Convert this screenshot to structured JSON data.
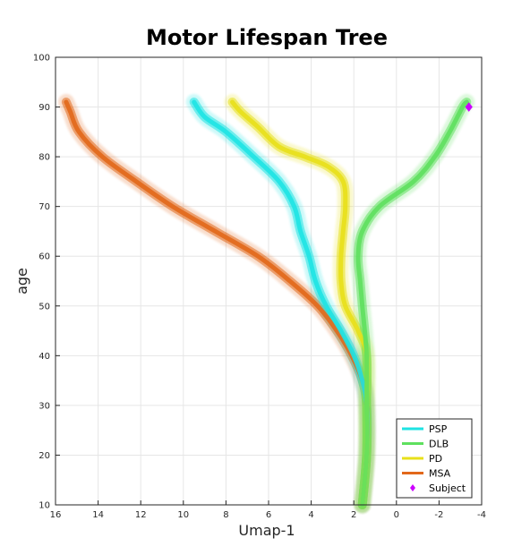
{
  "chart_data": {
    "type": "line",
    "title": "Motor Lifespan Tree",
    "xlabel": "Umap-1",
    "ylabel": "age",
    "xlim": [
      16,
      -4
    ],
    "ylim": [
      10,
      100
    ],
    "x_reversed": true,
    "xticks": [
      16,
      14,
      12,
      10,
      8,
      6,
      4,
      2,
      0,
      -2,
      -4
    ],
    "xtick_labels": [
      "16",
      "14",
      "12",
      "10",
      "8",
      "6",
      "4",
      "2",
      "0",
      "-2",
      "-4"
    ],
    "yticks": [
      10,
      20,
      30,
      40,
      50,
      60,
      70,
      80,
      90,
      100
    ],
    "ytick_labels": [
      "10",
      "20",
      "30",
      "40",
      "50",
      "60",
      "70",
      "80",
      "90",
      "100"
    ],
    "grid": true,
    "legend_position": "bottom-right",
    "series": [
      {
        "name": "PSP",
        "color": "#1ee3e3",
        "points": [
          [
            1.6,
            10
          ],
          [
            1.4,
            20
          ],
          [
            1.4,
            30
          ],
          [
            1.6,
            35
          ],
          [
            2.0,
            40
          ],
          [
            2.6,
            45
          ],
          [
            3.3,
            50
          ],
          [
            3.8,
            55
          ],
          [
            4.1,
            60
          ],
          [
            4.5,
            65
          ],
          [
            4.8,
            70
          ],
          [
            5.5,
            75
          ],
          [
            6.7,
            80
          ],
          [
            8.0,
            85
          ],
          [
            9.0,
            88
          ],
          [
            9.5,
            91
          ]
        ]
      },
      {
        "name": "DLB",
        "color": "#5ee05e",
        "points": [
          [
            1.6,
            10
          ],
          [
            1.4,
            20
          ],
          [
            1.4,
            30
          ],
          [
            1.4,
            40
          ],
          [
            1.6,
            50
          ],
          [
            1.7,
            55
          ],
          [
            1.8,
            60
          ],
          [
            1.6,
            65
          ],
          [
            0.8,
            70
          ],
          [
            -0.8,
            75
          ],
          [
            -1.8,
            80
          ],
          [
            -2.5,
            85
          ],
          [
            -3.1,
            90
          ],
          [
            -3.3,
            91
          ]
        ]
      },
      {
        "name": "PD",
        "color": "#e8e01a",
        "points": [
          [
            1.6,
            10
          ],
          [
            1.4,
            20
          ],
          [
            1.4,
            30
          ],
          [
            1.4,
            40
          ],
          [
            1.8,
            45
          ],
          [
            2.4,
            50
          ],
          [
            2.6,
            55
          ],
          [
            2.6,
            60
          ],
          [
            2.5,
            65
          ],
          [
            2.4,
            70
          ],
          [
            2.5,
            75
          ],
          [
            3.2,
            78
          ],
          [
            4.3,
            80
          ],
          [
            5.5,
            82
          ],
          [
            6.5,
            86
          ],
          [
            7.3,
            89
          ],
          [
            7.7,
            91
          ]
        ]
      },
      {
        "name": "MSA",
        "color": "#e2681a",
        "points": [
          [
            1.6,
            10
          ],
          [
            1.4,
            20
          ],
          [
            1.4,
            30
          ],
          [
            1.6,
            35
          ],
          [
            2.1,
            40
          ],
          [
            2.8,
            45
          ],
          [
            3.7,
            50
          ],
          [
            5.0,
            55
          ],
          [
            6.5,
            60
          ],
          [
            8.5,
            65
          ],
          [
            10.5,
            70
          ],
          [
            12.2,
            75
          ],
          [
            13.8,
            80
          ],
          [
            14.9,
            85
          ],
          [
            15.3,
            89
          ],
          [
            15.5,
            91
          ]
        ]
      }
    ],
    "subject": {
      "name": "Subject",
      "color": "#cc00ff",
      "marker": "diamond",
      "point": [
        -3.4,
        90
      ]
    }
  }
}
